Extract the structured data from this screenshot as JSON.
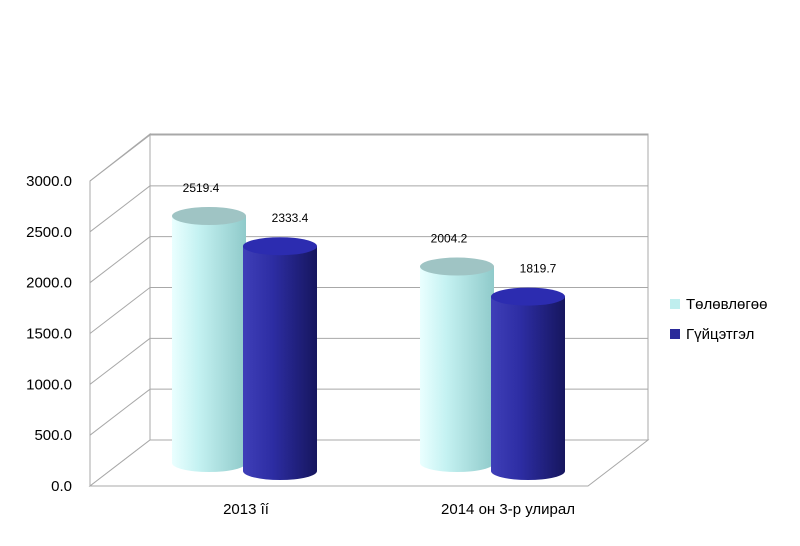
{
  "chart_data": {
    "type": "bar",
    "categories": [
      "2013 îí",
      "2014 он 3-р улирал"
    ],
    "series": [
      {
        "name": "Төлөвлөгөө",
        "values": [
          2519.4,
          2004.2
        ],
        "color": "#bfeeee"
      },
      {
        "name": "Гүйцэтгэл",
        "values": [
          2333.4,
          1819.7
        ],
        "color": "#2a2a9a"
      }
    ],
    "data_labels": [
      [
        "2519.4",
        "2004.2"
      ],
      [
        "2333.4",
        "1819.7"
      ]
    ],
    "y_ticks": [
      "0.0",
      "500.0",
      "1000.0",
      "1500.0",
      "2000.0",
      "2500.0",
      "3000.0"
    ],
    "ylim": [
      0,
      3000
    ],
    "grid": true,
    "legend_position": "right",
    "style": "3d-cylinder"
  }
}
